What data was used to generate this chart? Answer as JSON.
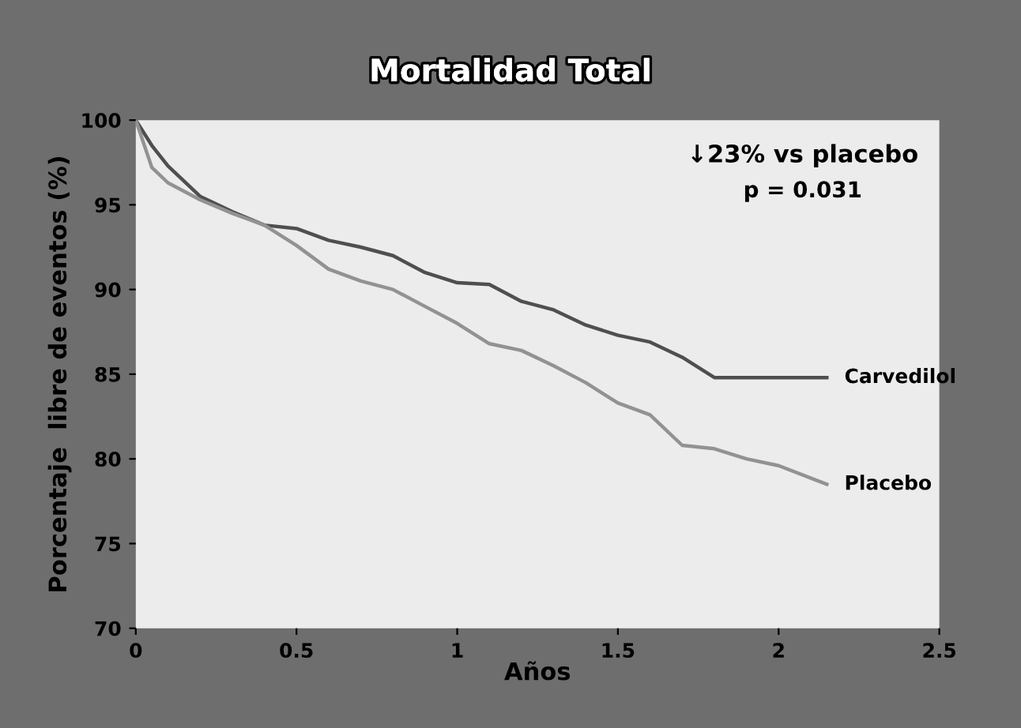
{
  "chart_data": {
    "type": "line",
    "title": "Mortalidad Total",
    "xlabel": "Años",
    "ylabel": "Porcentaje  libre de eventos (%)",
    "xlim": [
      0,
      2.5
    ],
    "ylim": [
      70,
      100
    ],
    "xticks": [
      0,
      0.5,
      1,
      1.5,
      2,
      2.5
    ],
    "yticks": [
      70,
      75,
      80,
      85,
      90,
      95,
      100
    ],
    "grid": false,
    "legend": false,
    "annotations": [
      "↓23% vs placebo",
      "p = 0.031"
    ],
    "series": [
      {
        "name": "Carvedilol",
        "color": "#4f4f4f",
        "x": [
          0,
          0.05,
          0.1,
          0.2,
          0.3,
          0.4,
          0.5,
          0.6,
          0.7,
          0.8,
          0.9,
          1.0,
          1.1,
          1.2,
          1.3,
          1.4,
          1.5,
          1.6,
          1.7,
          1.8,
          2.15
        ],
        "values": [
          100,
          98.5,
          97.3,
          95.5,
          94.6,
          93.8,
          93.6,
          92.9,
          92.5,
          92,
          91,
          90.4,
          90.3,
          89.3,
          88.8,
          87.9,
          87.3,
          86.9,
          86.0,
          84.8,
          84.8
        ]
      },
      {
        "name": "Placebo",
        "color": "#929292",
        "x": [
          0,
          0.05,
          0.1,
          0.2,
          0.3,
          0.4,
          0.5,
          0.6,
          0.7,
          0.8,
          0.9,
          1.0,
          1.1,
          1.2,
          1.3,
          1.4,
          1.5,
          1.6,
          1.7,
          1.8,
          1.9,
          2.0,
          2.15
        ],
        "values": [
          100,
          97.2,
          96.3,
          95.3,
          94.5,
          93.8,
          92.6,
          91.2,
          90.5,
          90,
          89,
          88,
          86.8,
          86.4,
          85.5,
          84.5,
          83.3,
          82.6,
          80.8,
          80.6,
          80,
          79.6,
          78.5
        ]
      }
    ]
  }
}
